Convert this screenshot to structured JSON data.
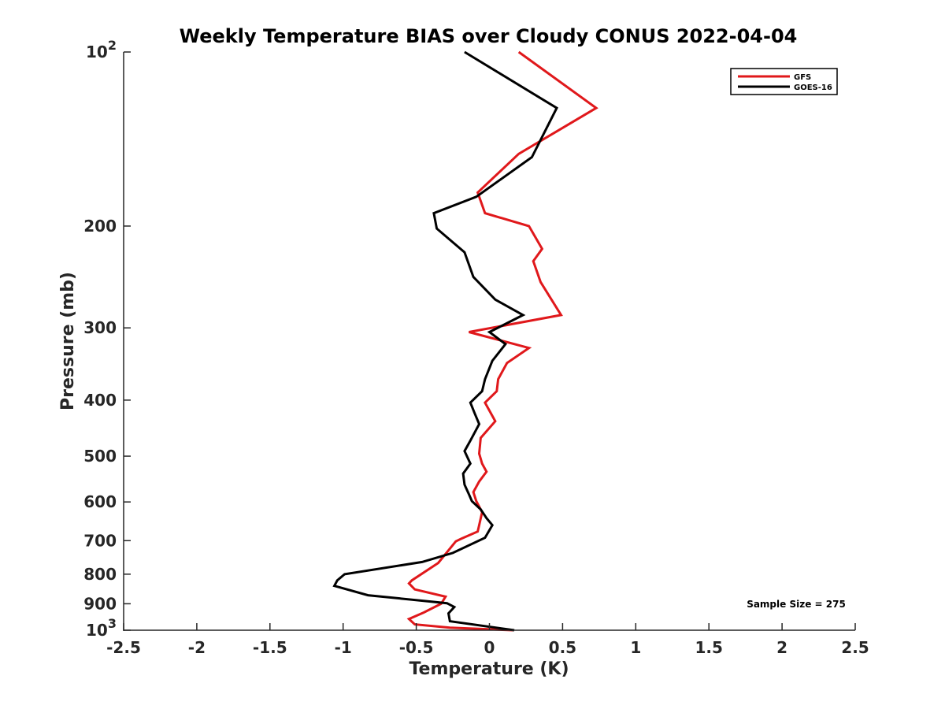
{
  "chart_data": {
    "type": "line",
    "title": "Weekly Temperature BIAS over Cloudy CONUS 2022-04-04",
    "xlabel": "Temperature (K)",
    "ylabel": "Pressure (mb)",
    "xlim": [
      -2.5,
      2.5
    ],
    "ylim": [
      100,
      1000
    ],
    "y_scale": "log",
    "y_reversed": true,
    "grid": false,
    "legend_position": "top-right",
    "x_ticks": [
      "-2.5",
      "-2",
      "-1.5",
      "-1",
      "-0.5",
      "0",
      "0.5",
      "1",
      "1.5",
      "2",
      "2.5"
    ],
    "x_tick_values": [
      -2.5,
      -2,
      -1.5,
      -1,
      -0.5,
      0,
      0.5,
      1,
      1.5,
      2,
      2.5
    ],
    "y_ticks": [
      {
        "value": 100,
        "base": "10",
        "exp": "2"
      },
      {
        "value": 200,
        "label": "200"
      },
      {
        "value": 300,
        "label": "300"
      },
      {
        "value": 400,
        "label": "400"
      },
      {
        "value": 500,
        "label": "500"
      },
      {
        "value": 600,
        "label": "600"
      },
      {
        "value": 700,
        "label": "700"
      },
      {
        "value": 800,
        "label": "800"
      },
      {
        "value": 900,
        "label": "900"
      },
      {
        "value": 1000,
        "base": "10",
        "exp": "3"
      }
    ],
    "annotation": "Sample Size = 275",
    "series": [
      {
        "name": "GFS",
        "color": "#e0181b",
        "points": [
          [
            0.2,
            100
          ],
          [
            0.73,
            125
          ],
          [
            0.2,
            150
          ],
          [
            -0.08,
            175
          ],
          [
            -0.03,
            190
          ],
          [
            0.27,
            200
          ],
          [
            0.36,
            219
          ],
          [
            0.3,
            230
          ],
          [
            0.35,
            250
          ],
          [
            0.49,
            285
          ],
          [
            -0.14,
            305
          ],
          [
            0.27,
            325
          ],
          [
            0.12,
            345
          ],
          [
            0.06,
            368
          ],
          [
            0.05,
            386
          ],
          [
            -0.03,
            404
          ],
          [
            0.04,
            435
          ],
          [
            -0.06,
            465
          ],
          [
            -0.07,
            495
          ],
          [
            -0.05,
            515
          ],
          [
            -0.02,
            532
          ],
          [
            -0.07,
            553
          ],
          [
            -0.11,
            577
          ],
          [
            -0.09,
            598
          ],
          [
            -0.05,
            625
          ],
          [
            -0.07,
            658
          ],
          [
            -0.08,
            675
          ],
          [
            -0.19,
            694
          ],
          [
            -0.23,
            702
          ],
          [
            -0.35,
            765
          ],
          [
            -0.53,
            820
          ],
          [
            -0.55,
            830
          ],
          [
            -0.51,
            850
          ],
          [
            -0.3,
            875
          ],
          [
            -0.33,
            900
          ],
          [
            -0.45,
            932
          ],
          [
            -0.55,
            956
          ],
          [
            -0.51,
            977
          ],
          [
            -0.27,
            990
          ],
          [
            0.16,
            1000
          ]
        ]
      },
      {
        "name": "GOES-16",
        "color": "#000000",
        "points": [
          [
            -0.17,
            100
          ],
          [
            0.46,
            125
          ],
          [
            0.29,
            152
          ],
          [
            -0.09,
            178
          ],
          [
            -0.38,
            190
          ],
          [
            -0.36,
            202
          ],
          [
            -0.17,
            222
          ],
          [
            -0.11,
            245
          ],
          [
            0.04,
            268
          ],
          [
            0.23,
            285
          ],
          [
            0.0,
            305
          ],
          [
            0.11,
            320
          ],
          [
            0.02,
            342
          ],
          [
            -0.03,
            368
          ],
          [
            -0.05,
            386
          ],
          [
            -0.13,
            404
          ],
          [
            -0.1,
            422
          ],
          [
            -0.07,
            440
          ],
          [
            -0.13,
            470
          ],
          [
            -0.17,
            490
          ],
          [
            -0.13,
            515
          ],
          [
            -0.18,
            536
          ],
          [
            -0.17,
            560
          ],
          [
            -0.14,
            582
          ],
          [
            -0.12,
            598
          ],
          [
            -0.06,
            618
          ],
          [
            -0.02,
            640
          ],
          [
            0.02,
            658
          ],
          [
            -0.03,
            692
          ],
          [
            -0.25,
            735
          ],
          [
            -0.46,
            762
          ],
          [
            -0.99,
            800
          ],
          [
            -1.04,
            820
          ],
          [
            -1.06,
            838
          ],
          [
            -0.83,
            870
          ],
          [
            -0.29,
            898
          ],
          [
            -0.24,
            912
          ],
          [
            -0.28,
            935
          ],
          [
            -0.27,
            965
          ],
          [
            0.17,
            1000
          ]
        ]
      }
    ]
  }
}
